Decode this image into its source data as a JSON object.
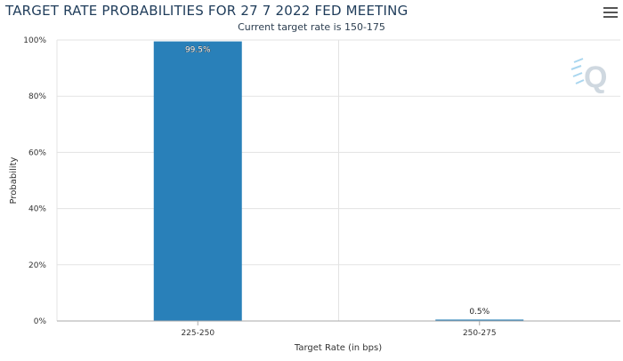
{
  "header": {
    "title": "TARGET RATE PROBABILITIES FOR 27 7 2022 FED MEETING",
    "subtitle": "Current target rate is 150-175",
    "menu_icon": "hamburger-menu-icon",
    "watermark_icon": "q-logo-icon"
  },
  "colors": {
    "bar": "#2980b9",
    "grid": "#e3e3e3",
    "axis": "#aaaaaa"
  },
  "chart_data": {
    "type": "bar",
    "title": "TARGET RATE PROBABILITIES FOR 27 7 2022 FED MEETING",
    "subtitle": "Current target rate is 150-175",
    "categories": [
      "225-250",
      "250-275"
    ],
    "values": [
      99.5,
      0.5
    ],
    "data_labels": [
      "99.5%",
      "0.5%"
    ],
    "xlabel": "Target Rate (in bps)",
    "ylabel": "Probability",
    "ylim": [
      0,
      100
    ],
    "yticks": [
      0,
      20,
      40,
      60,
      80,
      100
    ],
    "ytick_labels": [
      "0%",
      "20%",
      "40%",
      "60%",
      "80%",
      "100%"
    ],
    "grid": true
  }
}
